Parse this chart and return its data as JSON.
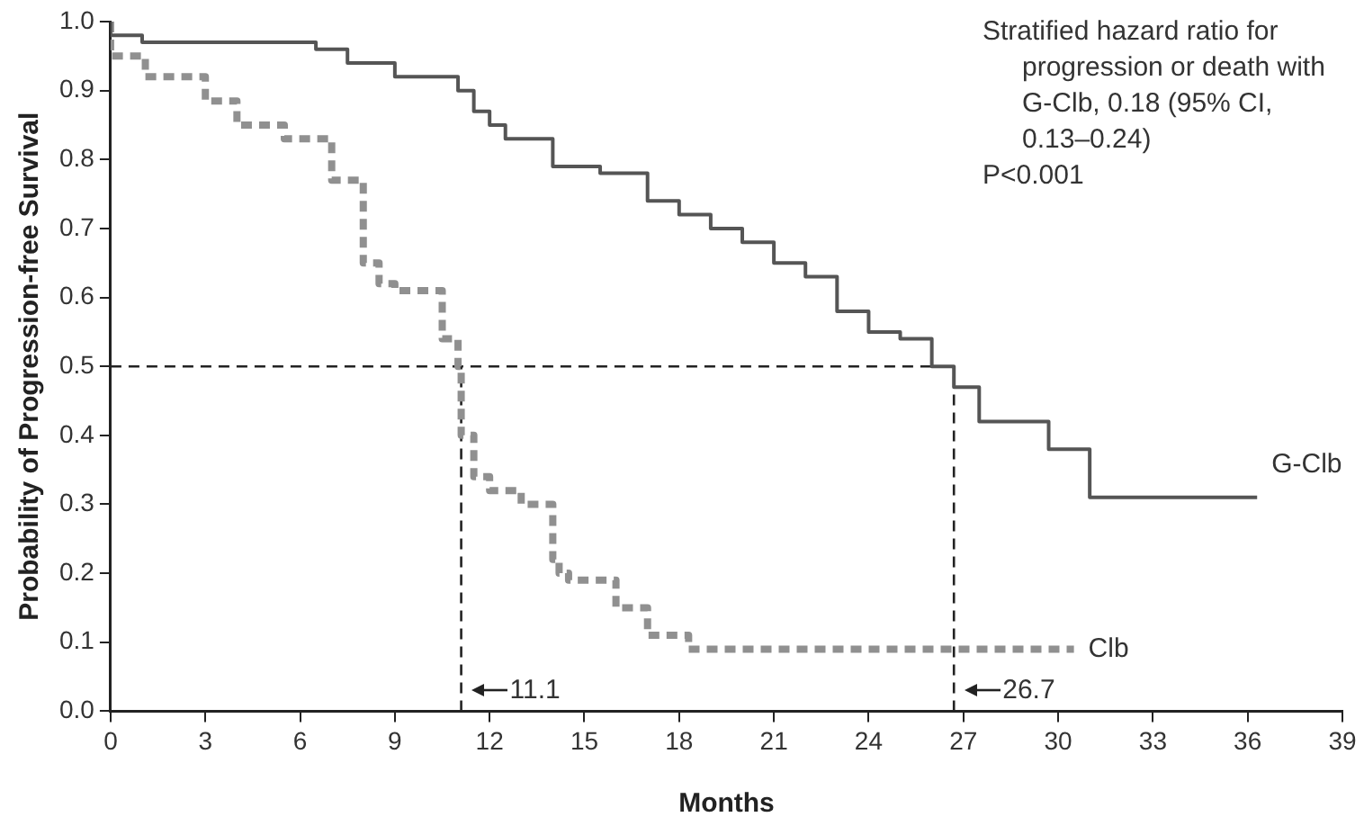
{
  "chart_data": {
    "type": "step",
    "xlabel": "Months",
    "ylabel": "Probability of Progression-free Survival",
    "xlim": [
      0,
      39
    ],
    "xticks": [
      0,
      3,
      6,
      9,
      12,
      15,
      18,
      21,
      24,
      27,
      30,
      33,
      36,
      39
    ],
    "ylim": [
      0,
      1
    ],
    "yticks": [
      {
        "value": 0,
        "label": "0.0"
      },
      0.1,
      0.2,
      0.3,
      0.4,
      0.5,
      0.6,
      0.7,
      0.8,
      0.9,
      {
        "value": 1,
        "label": "1.0"
      }
    ],
    "grid": false,
    "legend": false,
    "marker": "none",
    "series": [
      {
        "name": "G-Clb",
        "color": "#555555",
        "line_style": "solid",
        "x": [
          0,
          1,
          6.5,
          7.5,
          9,
          11,
          11.5,
          12,
          12.5,
          14,
          15.5,
          17,
          18,
          19,
          20,
          21,
          22,
          23,
          24,
          25,
          26,
          26.7,
          27.5,
          29.7,
          31,
          33,
          36.3
        ],
        "values": [
          1,
          0.98,
          0.97,
          0.96,
          0.94,
          0.92,
          0.9,
          0.87,
          0.85,
          0.83,
          0.79,
          0.78,
          0.74,
          0.72,
          0.7,
          0.68,
          0.65,
          0.63,
          0.58,
          0.55,
          0.54,
          0.5,
          0.47,
          0.42,
          0.38,
          0.31,
          0.31
        ]
      },
      {
        "name": "Clb",
        "color": "#909090",
        "line_style": "dashed",
        "x": [
          0,
          1.1,
          3,
          4,
          5.5,
          7,
          8,
          8.5,
          9,
          10.5,
          11,
          11.1,
          11.5,
          12,
          13,
          14,
          14.2,
          14.5,
          16,
          17,
          18.3,
          24.5,
          30.5
        ],
        "values": [
          1,
          0.95,
          0.92,
          0.885,
          0.85,
          0.83,
          0.77,
          0.65,
          0.62,
          0.61,
          0.54,
          0.5,
          0.4,
          0.34,
          0.32,
          0.3,
          0.22,
          0.2,
          0.19,
          0.15,
          0.11,
          0.09,
          0.09
        ]
      },
      {
        "type": "line",
        "color": "#222222",
        "line_style": "dashed",
        "x": [
          0,
          26.7
        ],
        "values": [
          0.5,
          0.5
        ]
      },
      {
        "type": "line",
        "color": "#222222",
        "line_style": "dashed",
        "x": [
          11.1,
          11.1
        ],
        "values": [
          0,
          0.5
        ]
      },
      {
        "type": "line",
        "color": "#222222",
        "line_style": "dashed",
        "x": [
          26.7,
          26.7
        ],
        "values": [
          0,
          0.5
        ]
      }
    ],
    "annotations": [
      "Stratified hazard ratio for\nprogression or death with\nG-Clb, 0.18 (95% CI,\n0.13–0.24)",
      "P<0.001",
      {
        "text": "11.1",
        "x": 11.1,
        "y": 0.03
      },
      {
        "text": "26.7",
        "x": 26.7,
        "y": 0.03
      }
    ]
  }
}
